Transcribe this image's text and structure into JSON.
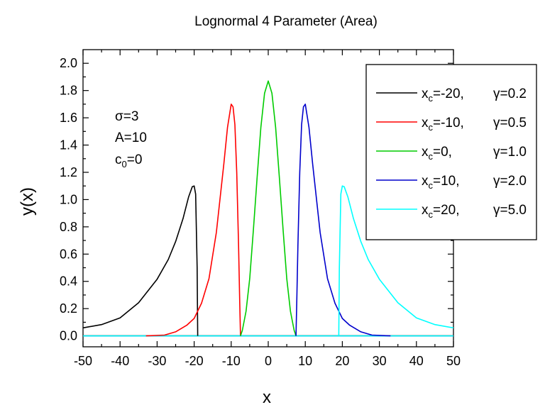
{
  "chart_data": {
    "type": "line",
    "title": "Lognormal 4 Parameter (Area)",
    "xlabel": "x",
    "ylabel": "y(x)",
    "xlim": [
      -50,
      50
    ],
    "ylim": [
      -0.08,
      2.1
    ],
    "grid": false,
    "legend_placement": "top-right",
    "x_ticks": [
      -50,
      -40,
      -30,
      -20,
      -10,
      0,
      10,
      20,
      30,
      40,
      50
    ],
    "x_tick_labels": [
      "-50",
      "-40",
      "-30",
      "-20",
      "-10",
      "0",
      "10",
      "20",
      "30",
      "40",
      "50"
    ],
    "y_ticks": [
      0.0,
      0.2,
      0.4,
      0.6,
      0.8,
      1.0,
      1.2,
      1.4,
      1.6,
      1.8,
      2.0
    ],
    "y_tick_labels": [
      "0.0",
      "0.2",
      "0.4",
      "0.6",
      "0.8",
      "1.0",
      "1.2",
      "1.4",
      "1.6",
      "1.8",
      "2.0"
    ],
    "annotations": {
      "sigma": "σ=3",
      "amplitude": "A=10",
      "offset_c": "c",
      "offset_sub": "0",
      "offset_val": "=0"
    },
    "parameters": {
      "sigma": 3,
      "A": 10,
      "c0": 0
    },
    "series": [
      {
        "legend": {
          "x": "x",
          "sub": "c",
          "xc": "=-20,",
          "gamma": "γ=0.2"
        },
        "xc": -20,
        "gamma": 0.2,
        "color": "#000000",
        "points": [
          [
            -50,
            0.059
          ],
          [
            -45,
            0.083
          ],
          [
            -40,
            0.132
          ],
          [
            -35,
            0.243
          ],
          [
            -30,
            0.416
          ],
          [
            -27,
            0.56
          ],
          [
            -25,
            0.692
          ],
          [
            -23,
            0.86
          ],
          [
            -21.5,
            1.02
          ],
          [
            -20.5,
            1.095
          ],
          [
            -20,
            1.1
          ],
          [
            -19.6,
            1.04
          ],
          [
            -19.2,
            0.5
          ],
          [
            -19.05,
            0.0
          ]
        ]
      },
      {
        "legend": {
          "x": "x",
          "sub": "c",
          "xc": "=-10,",
          "gamma": "γ=0.5"
        },
        "xc": -10,
        "gamma": 0.5,
        "color": "#ff0000",
        "points": [
          [
            -33,
            0.0
          ],
          [
            -28,
            0.006
          ],
          [
            -25,
            0.03
          ],
          [
            -22,
            0.078
          ],
          [
            -20,
            0.128
          ],
          [
            -18,
            0.24
          ],
          [
            -16,
            0.42
          ],
          [
            -14,
            0.76
          ],
          [
            -12,
            1.26
          ],
          [
            -11,
            1.53
          ],
          [
            -10,
            1.7
          ],
          [
            -9.5,
            1.68
          ],
          [
            -9,
            1.55
          ],
          [
            -8.5,
            1.2
          ],
          [
            -8,
            0.66
          ],
          [
            -7.7,
            0.25
          ],
          [
            -7.5,
            0.0
          ]
        ]
      },
      {
        "legend": {
          "x": "x",
          "sub": "c",
          "xc": "=0,",
          "gamma": "γ=1.0"
        },
        "xc": 0,
        "gamma": 1.0,
        "color": "#00cc00",
        "points": [
          [
            -7.5,
            0.0
          ],
          [
            -7,
            0.04
          ],
          [
            -6,
            0.18
          ],
          [
            -5,
            0.42
          ],
          [
            -4,
            0.78
          ],
          [
            -3,
            1.16
          ],
          [
            -2,
            1.53
          ],
          [
            -1,
            1.78
          ],
          [
            0,
            1.87
          ],
          [
            1,
            1.78
          ],
          [
            2,
            1.53
          ],
          [
            3,
            1.16
          ],
          [
            4,
            0.78
          ],
          [
            5,
            0.42
          ],
          [
            6,
            0.18
          ],
          [
            7,
            0.04
          ],
          [
            7.5,
            0.0
          ]
        ]
      },
      {
        "legend": {
          "x": "x",
          "sub": "c",
          "xc": "=10,",
          "gamma": "γ=2.0"
        },
        "xc": 10,
        "gamma": 2.0,
        "color": "#0000cc",
        "points": [
          [
            7.5,
            0.0
          ],
          [
            7.7,
            0.25
          ],
          [
            8,
            0.66
          ],
          [
            8.5,
            1.2
          ],
          [
            9,
            1.55
          ],
          [
            9.5,
            1.68
          ],
          [
            10,
            1.7
          ],
          [
            11,
            1.53
          ],
          [
            12,
            1.26
          ],
          [
            14,
            0.76
          ],
          [
            16,
            0.42
          ],
          [
            18,
            0.24
          ],
          [
            20,
            0.128
          ],
          [
            22,
            0.078
          ],
          [
            25,
            0.03
          ],
          [
            28,
            0.006
          ],
          [
            33,
            0.0
          ]
        ]
      },
      {
        "legend": {
          "x": "x",
          "sub": "c",
          "xc": "=20,",
          "gamma": "γ=5.0"
        },
        "xc": 20,
        "gamma": 5.0,
        "color": "#00ffff",
        "points": [
          [
            19.05,
            0.0
          ],
          [
            19.2,
            0.5
          ],
          [
            19.6,
            1.04
          ],
          [
            20,
            1.1
          ],
          [
            20.5,
            1.095
          ],
          [
            21.5,
            1.02
          ],
          [
            23,
            0.86
          ],
          [
            25,
            0.692
          ],
          [
            27,
            0.56
          ],
          [
            30,
            0.416
          ],
          [
            35,
            0.243
          ],
          [
            40,
            0.132
          ],
          [
            45,
            0.083
          ],
          [
            50,
            0.059
          ]
        ]
      }
    ]
  }
}
